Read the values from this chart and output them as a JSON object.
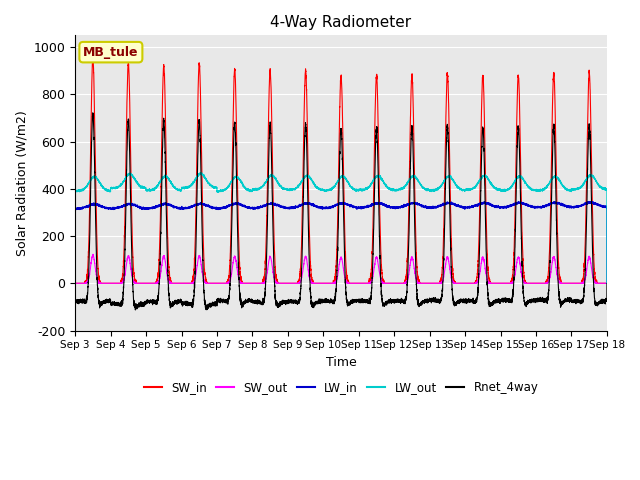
{
  "title": "4-Way Radiometer",
  "xlabel": "Time",
  "ylabel": "Solar Radiation (W/m2)",
  "station_label": "MB_tule",
  "ylim": [
    -200,
    1050
  ],
  "yticks": [
    -200,
    0,
    200,
    400,
    600,
    800,
    1000
  ],
  "xtick_labels": [
    "Sep 3",
    "Sep 4",
    "Sep 5",
    "Sep 6",
    "Sep 7",
    "Sep 8",
    "Sep 9",
    "Sep 10",
    "Sep 11",
    "Sep 12",
    "Sep 13",
    "Sep 14",
    "Sep 15",
    "Sep 16",
    "Sep 17",
    "Sep 18"
  ],
  "colors": {
    "SW_in": "#ff0000",
    "SW_out": "#ff00ff",
    "LW_in": "#0000cc",
    "LW_out": "#00cccc",
    "Rnet_4way": "#000000"
  },
  "background_color": "#e8e8e8",
  "n_days": 15,
  "points_per_day": 480
}
